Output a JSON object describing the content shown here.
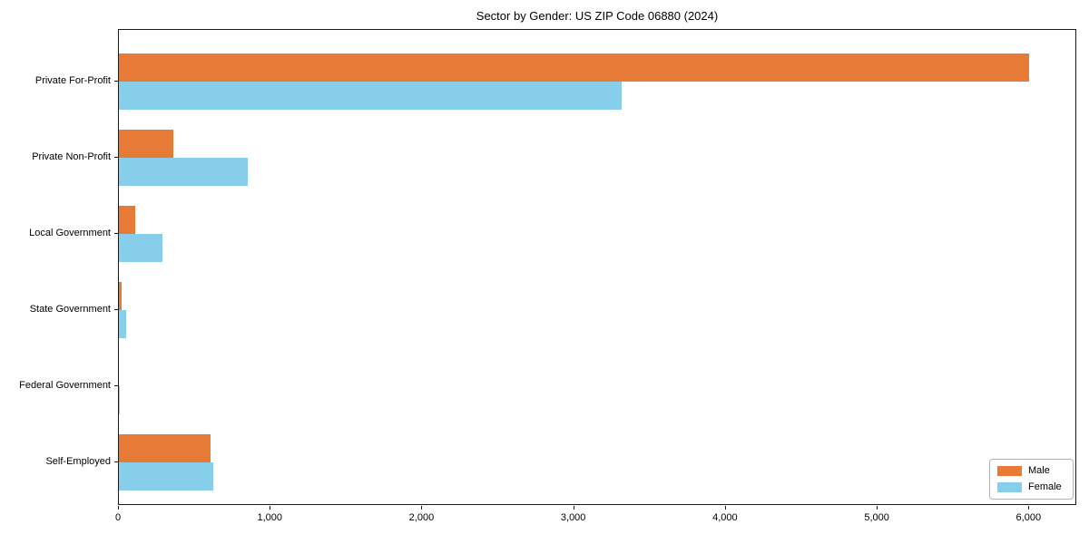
{
  "title": "Sector by Gender: US ZIP Code 06880 (2024)",
  "chart_data": {
    "type": "bar",
    "orientation": "horizontal",
    "title": "Sector by Gender: US ZIP Code 06880 (2024)",
    "categories": [
      "Private For-Profit",
      "Private Non-Profit",
      "Local Government",
      "State Government",
      "Federal Government",
      "Self-Employed"
    ],
    "series": [
      {
        "name": "Male",
        "color": "#e87a38",
        "values": [
          6010,
          360,
          110,
          20,
          0,
          605
        ]
      },
      {
        "name": "Female",
        "color": "#87ceeb",
        "values": [
          3320,
          850,
          285,
          45,
          8,
          625
        ]
      }
    ],
    "xlabel": "",
    "ylabel": "",
    "xlim": [
      0,
      6315
    ],
    "xticks": [
      0,
      1000,
      2000,
      3000,
      4000,
      5000,
      6000
    ],
    "xtick_labels": [
      "0",
      "1,000",
      "2,000",
      "3,000",
      "4,000",
      "5,000",
      "6,000"
    ],
    "legend_position": "lower-right",
    "grid": false,
    "background_color": "#ffffff",
    "spine_color": "#1a1a1a"
  }
}
